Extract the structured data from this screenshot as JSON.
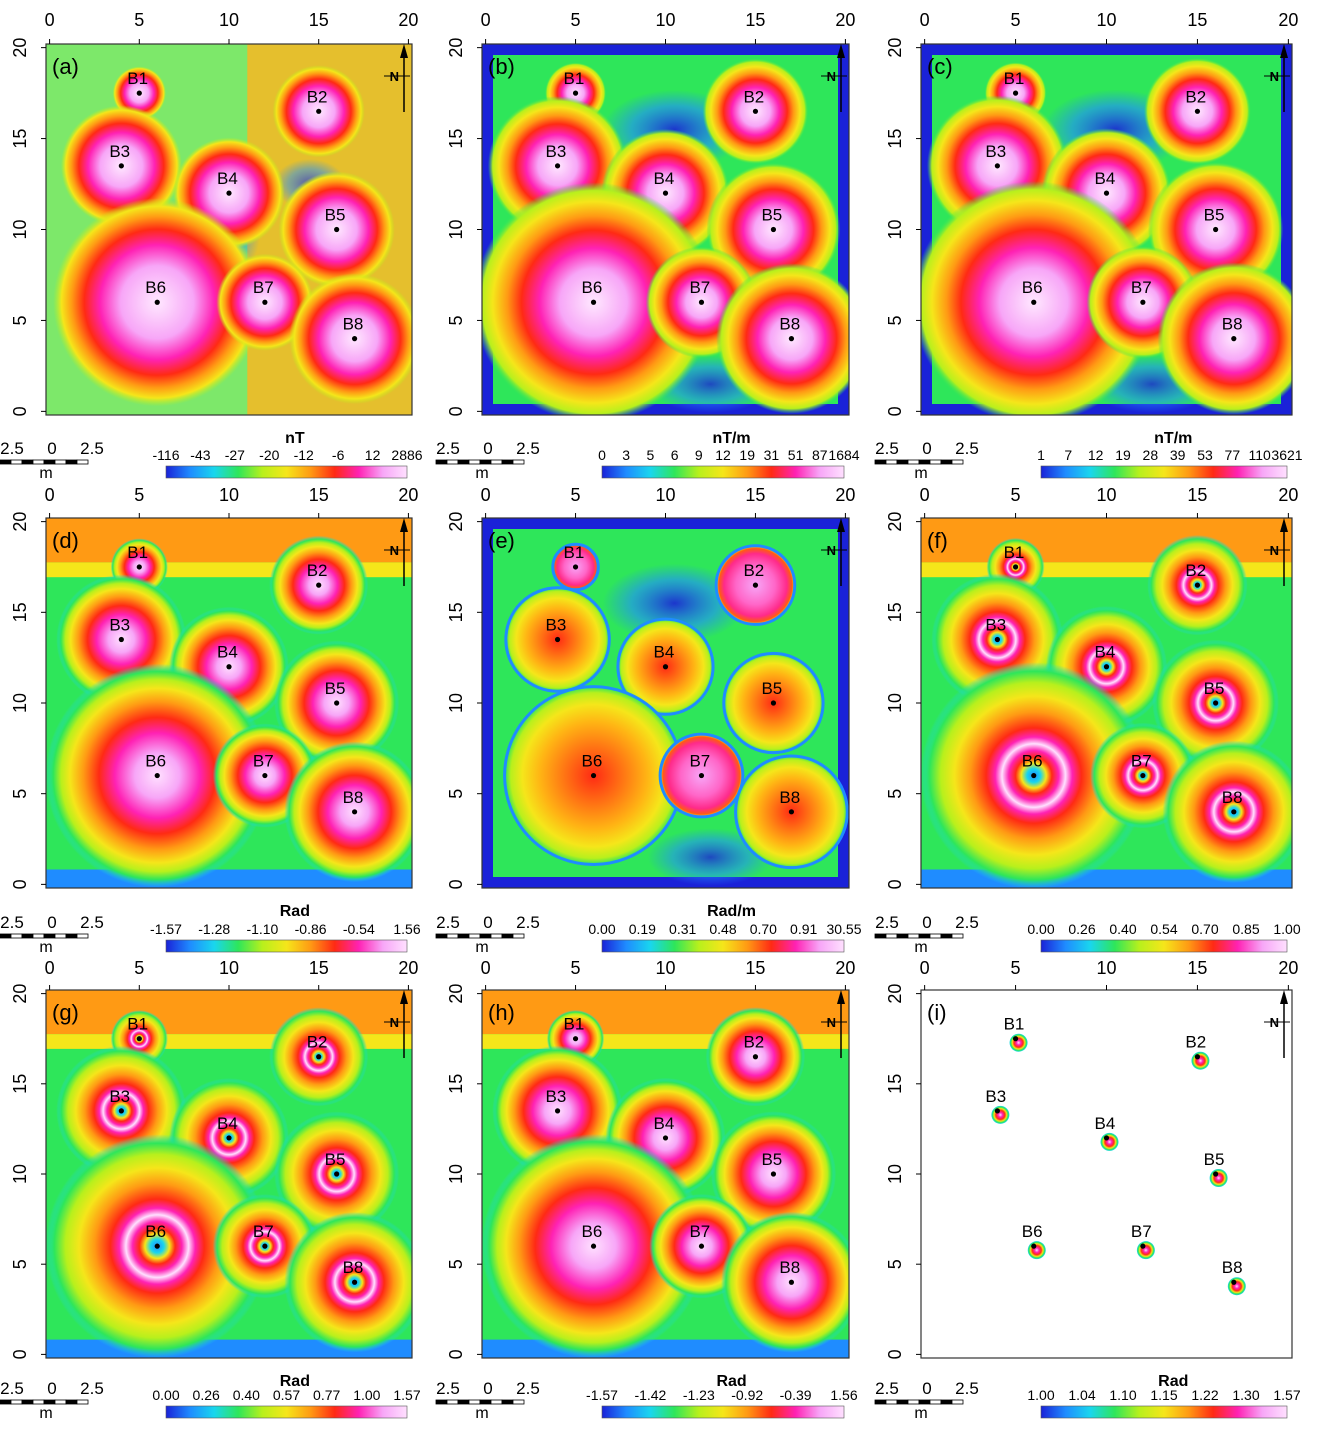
{
  "figure": {
    "axis_ticks": [
      "0",
      "5",
      "10",
      "15",
      "20"
    ],
    "north_label": "N",
    "scale_labels": [
      "2.5",
      "0",
      "2.5"
    ],
    "scale_unit": "m",
    "bodies": [
      {
        "label": "B1",
        "x": 5,
        "y": 17.5
      },
      {
        "label": "B2",
        "x": 15,
        "y": 16.5
      },
      {
        "label": "B3",
        "x": 4,
        "y": 13.5
      },
      {
        "label": "B4",
        "x": 10,
        "y": 12
      },
      {
        "label": "B5",
        "x": 16,
        "y": 10
      },
      {
        "label": "B6",
        "x": 6,
        "y": 6
      },
      {
        "label": "B7",
        "x": 12,
        "y": 6
      },
      {
        "label": "B8",
        "x": 17,
        "y": 4
      }
    ],
    "panels": [
      {
        "id": "(a)",
        "unit": "nT",
        "ticks": [
          "-116",
          "-43",
          "-27",
          "-20",
          "-12",
          "-6",
          "12",
          "2886"
        ],
        "style": "tmi"
      },
      {
        "id": "(b)",
        "unit": "nT/m",
        "ticks": [
          "0",
          "3",
          "5",
          "6",
          "9",
          "12",
          "19",
          "31",
          "51",
          "87",
          "1684"
        ],
        "style": "smooth"
      },
      {
        "id": "(c)",
        "unit": "nT/m",
        "ticks": [
          "1",
          "7",
          "12",
          "19",
          "28",
          "39",
          "53",
          "77",
          "110",
          "3621"
        ],
        "style": "smooth"
      },
      {
        "id": "(d)",
        "unit": "Rad",
        "ticks": [
          "-1.57",
          "-1.28",
          "-1.10",
          "-0.86",
          "-0.54",
          "1.56"
        ],
        "style": "tilt"
      },
      {
        "id": "(e)",
        "unit": "Rad/m",
        "ticks": [
          "0.00",
          "0.19",
          "0.31",
          "0.48",
          "0.70",
          "0.91",
          "30.55"
        ],
        "style": "cells"
      },
      {
        "id": "(f)",
        "unit": "",
        "ticks": [
          "0.00",
          "0.26",
          "0.40",
          "0.54",
          "0.70",
          "0.85",
          "1.00"
        ],
        "style": "rings"
      },
      {
        "id": "(g)",
        "unit": "Rad",
        "ticks": [
          "0.00",
          "0.26",
          "0.40",
          "0.57",
          "0.77",
          "1.00",
          "1.57"
        ],
        "style": "rings"
      },
      {
        "id": "(h)",
        "unit": "Rad",
        "ticks": [
          "-1.57",
          "-1.42",
          "-1.23",
          "-0.92",
          "-0.39",
          "1.56"
        ],
        "style": "tilt"
      },
      {
        "id": "(i)",
        "unit": "Rad",
        "ticks": [
          "1.00",
          "1.04",
          "1.10",
          "1.15",
          "1.22",
          "1.30",
          "1.57"
        ],
        "style": "dots"
      }
    ],
    "colors": {
      "palette": [
        "#1a22d8",
        "#1f8cff",
        "#19d6ee",
        "#2ee65a",
        "#b8f01c",
        "#f5e61a",
        "#ff9a14",
        "#ff2a14",
        "#ff22b4",
        "#f7a6f7",
        "#ffe0ff"
      ]
    }
  }
}
